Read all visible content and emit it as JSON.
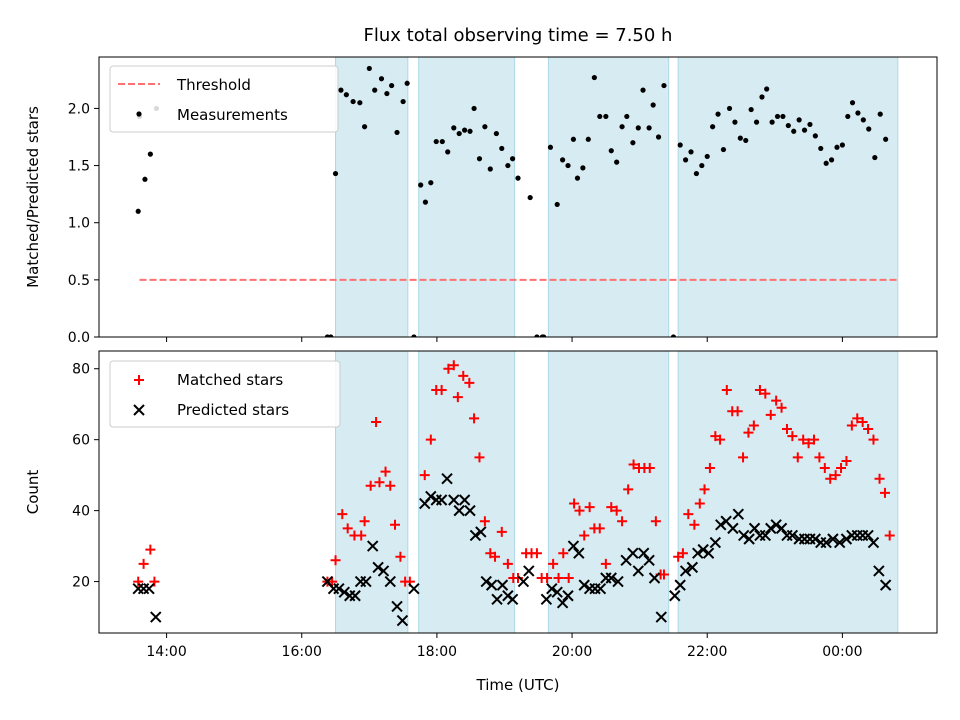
{
  "chart_data": {
    "title": "Flux total observing time = 7.50 h",
    "xlabel": "Time (UTC)",
    "x_unit": "hours since 00:00 UTC (values > 24 are next day)",
    "xlim": [
      13.0,
      25.4
    ],
    "xticks": [
      14,
      16,
      18,
      20,
      22,
      24
    ],
    "xtick_labels": [
      "14:00",
      "16:00",
      "18:00",
      "20:00",
      "22:00",
      "00:00"
    ],
    "shaded_intervals": [
      [
        16.5,
        17.57
      ],
      [
        17.73,
        19.15
      ],
      [
        19.65,
        21.43
      ],
      [
        21.57,
        24.82
      ]
    ],
    "colors": {
      "shade": "#add8e6",
      "threshold": "#ff7070",
      "measurement": "#000000",
      "matched": "#ff0000",
      "predicted": "#000000"
    },
    "top": {
      "type": "scatter",
      "ylabel": "Matched/Predicted stars",
      "ylim": [
        0.0,
        2.45
      ],
      "yticks": [
        0.0,
        0.5,
        1.0,
        1.5,
        2.0
      ],
      "ytick_labels": [
        "0.0",
        "0.5",
        "1.0",
        "1.5",
        "2.0"
      ],
      "legend": [
        "Threshold",
        "Measurements"
      ],
      "threshold": {
        "y": 0.5,
        "x": [
          13.6,
          24.82
        ]
      },
      "measurements": [
        [
          13.58,
          1.1
        ],
        [
          13.6,
          1.93
        ],
        [
          13.68,
          1.38
        ],
        [
          13.76,
          1.6
        ],
        [
          13.85,
          2.0
        ],
        [
          16.38,
          0.0
        ],
        [
          16.43,
          0.0
        ],
        [
          16.5,
          1.43
        ],
        [
          16.58,
          2.16
        ],
        [
          16.66,
          2.12
        ],
        [
          16.76,
          2.06
        ],
        [
          16.86,
          2.05
        ],
        [
          16.93,
          1.84
        ],
        [
          17.0,
          2.35
        ],
        [
          17.08,
          2.16
        ],
        [
          17.18,
          2.26
        ],
        [
          17.26,
          2.13
        ],
        [
          17.33,
          2.2
        ],
        [
          17.41,
          1.79
        ],
        [
          17.5,
          2.06
        ],
        [
          17.56,
          2.22
        ],
        [
          17.66,
          0.0
        ],
        [
          17.76,
          1.33
        ],
        [
          17.83,
          1.18
        ],
        [
          17.91,
          1.35
        ],
        [
          17.99,
          1.71
        ],
        [
          18.08,
          1.71
        ],
        [
          18.16,
          1.62
        ],
        [
          18.25,
          1.83
        ],
        [
          18.33,
          1.78
        ],
        [
          18.41,
          1.81
        ],
        [
          18.49,
          1.8
        ],
        [
          18.55,
          2.0
        ],
        [
          18.63,
          1.56
        ],
        [
          18.71,
          1.84
        ],
        [
          18.79,
          1.47
        ],
        [
          18.88,
          1.78
        ],
        [
          18.96,
          1.65
        ],
        [
          19.05,
          1.5
        ],
        [
          19.12,
          1.56
        ],
        [
          19.2,
          1.39
        ],
        [
          19.48,
          0.0
        ],
        [
          19.56,
          0.0
        ],
        [
          19.38,
          1.22
        ],
        [
          19.58,
          0.0
        ],
        [
          19.68,
          1.66
        ],
        [
          19.78,
          1.16
        ],
        [
          19.86,
          1.55
        ],
        [
          19.94,
          1.5
        ],
        [
          20.02,
          1.73
        ],
        [
          20.08,
          1.39
        ],
        [
          20.16,
          1.48
        ],
        [
          20.24,
          1.73
        ],
        [
          20.33,
          2.27
        ],
        [
          20.41,
          1.93
        ],
        [
          20.5,
          1.93
        ],
        [
          20.58,
          1.63
        ],
        [
          20.66,
          1.53
        ],
        [
          20.74,
          1.84
        ],
        [
          20.81,
          1.93
        ],
        [
          20.9,
          1.7
        ],
        [
          20.98,
          1.83
        ],
        [
          21.05,
          2.16
        ],
        [
          21.14,
          1.83
        ],
        [
          21.2,
          2.03
        ],
        [
          21.28,
          1.75
        ],
        [
          21.36,
          2.2
        ],
        [
          21.5,
          0.0
        ],
        [
          21.6,
          1.68
        ],
        [
          21.68,
          1.55
        ],
        [
          21.76,
          1.62
        ],
        [
          21.84,
          1.43
        ],
        [
          21.92,
          1.5
        ],
        [
          22.0,
          1.58
        ],
        [
          22.08,
          1.84
        ],
        [
          22.16,
          1.95
        ],
        [
          22.24,
          1.64
        ],
        [
          22.33,
          2.0
        ],
        [
          22.41,
          1.88
        ],
        [
          22.49,
          1.74
        ],
        [
          22.57,
          1.72
        ],
        [
          22.65,
          1.99
        ],
        [
          22.73,
          1.88
        ],
        [
          22.81,
          2.1
        ],
        [
          22.88,
          2.17
        ],
        [
          22.96,
          1.88
        ],
        [
          23.04,
          1.93
        ],
        [
          23.12,
          1.93
        ],
        [
          23.2,
          1.85
        ],
        [
          23.28,
          1.8
        ],
        [
          23.36,
          1.9
        ],
        [
          23.44,
          1.81
        ],
        [
          23.52,
          1.86
        ],
        [
          23.6,
          1.76
        ],
        [
          23.68,
          1.65
        ],
        [
          23.76,
          1.52
        ],
        [
          23.84,
          1.55
        ],
        [
          23.92,
          1.66
        ],
        [
          24.0,
          1.68
        ],
        [
          24.08,
          1.93
        ],
        [
          24.15,
          2.05
        ],
        [
          24.23,
          1.96
        ],
        [
          24.31,
          1.9
        ],
        [
          24.39,
          1.82
        ],
        [
          24.48,
          1.57
        ],
        [
          24.56,
          1.95
        ],
        [
          24.64,
          1.73
        ]
      ]
    },
    "bottom": {
      "type": "scatter",
      "ylabel": "Count",
      "ylim": [
        5.5,
        85
      ],
      "yticks": [
        20,
        40,
        60,
        80
      ],
      "ytick_labels": [
        "20",
        "40",
        "60",
        "80"
      ],
      "legend": [
        "Matched stars",
        "Predicted stars"
      ],
      "matched": [
        [
          13.58,
          20
        ],
        [
          13.66,
          25
        ],
        [
          13.76,
          29
        ],
        [
          13.82,
          20
        ],
        [
          16.38,
          20
        ],
        [
          16.45,
          20
        ],
        [
          16.5,
          26
        ],
        [
          16.6,
          39
        ],
        [
          16.68,
          35
        ],
        [
          16.78,
          33
        ],
        [
          16.88,
          33
        ],
        [
          16.93,
          37
        ],
        [
          17.02,
          47
        ],
        [
          17.1,
          65
        ],
        [
          17.15,
          48
        ],
        [
          17.24,
          51
        ],
        [
          17.31,
          47
        ],
        [
          17.38,
          36
        ],
        [
          17.46,
          27
        ],
        [
          17.53,
          20
        ],
        [
          17.6,
          20
        ],
        [
          17.82,
          50
        ],
        [
          17.91,
          60
        ],
        [
          17.99,
          74
        ],
        [
          18.07,
          74
        ],
        [
          18.17,
          80
        ],
        [
          18.25,
          81
        ],
        [
          18.31,
          72
        ],
        [
          18.39,
          78
        ],
        [
          18.48,
          76
        ],
        [
          18.55,
          66
        ],
        [
          18.63,
          55
        ],
        [
          18.71,
          37
        ],
        [
          18.79,
          28
        ],
        [
          18.86,
          27
        ],
        [
          18.96,
          34
        ],
        [
          19.05,
          25
        ],
        [
          19.13,
          21
        ],
        [
          19.2,
          21
        ],
        [
          19.32,
          28
        ],
        [
          19.4,
          28
        ],
        [
          19.48,
          28
        ],
        [
          19.55,
          21
        ],
        [
          19.63,
          21
        ],
        [
          19.72,
          25
        ],
        [
          19.8,
          21
        ],
        [
          19.87,
          28
        ],
        [
          19.95,
          21
        ],
        [
          20.03,
          42
        ],
        [
          20.11,
          40
        ],
        [
          20.18,
          33
        ],
        [
          20.26,
          41
        ],
        [
          20.33,
          35
        ],
        [
          20.41,
          35
        ],
        [
          20.5,
          25
        ],
        [
          20.58,
          41
        ],
        [
          20.66,
          40
        ],
        [
          20.74,
          37
        ],
        [
          20.83,
          46
        ],
        [
          20.91,
          53
        ],
        [
          20.99,
          52
        ],
        [
          21.07,
          52
        ],
        [
          21.15,
          52
        ],
        [
          21.24,
          37
        ],
        [
          21.31,
          22
        ],
        [
          21.36,
          22
        ],
        [
          21.57,
          27
        ],
        [
          21.64,
          28
        ],
        [
          21.72,
          39
        ],
        [
          21.81,
          36
        ],
        [
          21.89,
          42
        ],
        [
          21.96,
          46
        ],
        [
          22.04,
          52
        ],
        [
          22.12,
          61
        ],
        [
          22.19,
          60
        ],
        [
          22.29,
          74
        ],
        [
          22.37,
          68
        ],
        [
          22.45,
          68
        ],
        [
          22.53,
          55
        ],
        [
          22.61,
          62
        ],
        [
          22.69,
          64
        ],
        [
          22.78,
          74
        ],
        [
          22.86,
          73
        ],
        [
          22.94,
          67
        ],
        [
          23.02,
          71
        ],
        [
          23.1,
          69
        ],
        [
          23.18,
          63
        ],
        [
          23.26,
          61
        ],
        [
          23.34,
          55
        ],
        [
          23.42,
          60
        ],
        [
          23.5,
          59
        ],
        [
          23.58,
          60
        ],
        [
          23.66,
          55
        ],
        [
          23.74,
          52
        ],
        [
          23.82,
          49
        ],
        [
          23.9,
          50
        ],
        [
          23.98,
          52
        ],
        [
          24.06,
          54
        ],
        [
          24.14,
          64
        ],
        [
          24.22,
          66
        ],
        [
          24.3,
          65
        ],
        [
          24.38,
          63
        ],
        [
          24.46,
          60
        ],
        [
          24.55,
          49
        ],
        [
          24.63,
          45
        ],
        [
          24.7,
          33
        ]
      ],
      "predicted": [
        [
          13.58,
          18
        ],
        [
          13.66,
          18
        ],
        [
          13.74,
          18
        ],
        [
          13.84,
          10
        ],
        [
          16.38,
          20
        ],
        [
          16.47,
          18
        ],
        [
          16.55,
          18
        ],
        [
          16.63,
          17
        ],
        [
          16.71,
          16
        ],
        [
          16.79,
          16
        ],
        [
          16.87,
          20
        ],
        [
          16.95,
          20
        ],
        [
          17.05,
          30
        ],
        [
          17.13,
          24
        ],
        [
          17.21,
          23
        ],
        [
          17.31,
          20
        ],
        [
          17.41,
          13
        ],
        [
          17.49,
          9
        ],
        [
          17.66,
          18
        ],
        [
          17.82,
          42
        ],
        [
          17.91,
          44
        ],
        [
          17.99,
          43
        ],
        [
          18.07,
          43
        ],
        [
          18.15,
          49
        ],
        [
          18.25,
          43
        ],
        [
          18.33,
          40
        ],
        [
          18.41,
          43
        ],
        [
          18.49,
          40
        ],
        [
          18.57,
          33
        ],
        [
          18.65,
          34
        ],
        [
          18.73,
          20
        ],
        [
          18.81,
          19
        ],
        [
          18.89,
          15
        ],
        [
          18.97,
          19
        ],
        [
          19.05,
          16
        ],
        [
          19.12,
          15
        ],
        [
          19.28,
          20
        ],
        [
          19.36,
          23
        ],
        [
          19.62,
          15
        ],
        [
          19.7,
          18
        ],
        [
          19.78,
          17
        ],
        [
          19.86,
          14
        ],
        [
          19.94,
          16
        ],
        [
          20.02,
          30
        ],
        [
          20.1,
          28
        ],
        [
          20.18,
          19
        ],
        [
          20.26,
          18
        ],
        [
          20.34,
          18
        ],
        [
          20.42,
          18
        ],
        [
          20.5,
          21
        ],
        [
          20.58,
          21
        ],
        [
          20.68,
          20
        ],
        [
          20.8,
          26
        ],
        [
          20.9,
          28
        ],
        [
          20.98,
          23
        ],
        [
          21.06,
          28
        ],
        [
          21.14,
          26
        ],
        [
          21.22,
          21
        ],
        [
          21.32,
          10
        ],
        [
          21.52,
          16
        ],
        [
          21.6,
          19
        ],
        [
          21.68,
          23
        ],
        [
          21.78,
          24
        ],
        [
          21.86,
          28
        ],
        [
          21.94,
          29
        ],
        [
          22.02,
          28
        ],
        [
          22.12,
          31
        ],
        [
          22.2,
          36
        ],
        [
          22.28,
          37
        ],
        [
          22.38,
          35
        ],
        [
          22.46,
          39
        ],
        [
          22.54,
          33
        ],
        [
          22.62,
          32
        ],
        [
          22.7,
          35
        ],
        [
          22.78,
          33
        ],
        [
          22.86,
          33
        ],
        [
          22.94,
          35
        ],
        [
          23.02,
          36
        ],
        [
          23.1,
          35
        ],
        [
          23.18,
          33
        ],
        [
          23.26,
          33
        ],
        [
          23.36,
          32
        ],
        [
          23.44,
          32
        ],
        [
          23.52,
          32
        ],
        [
          23.6,
          32
        ],
        [
          23.68,
          31
        ],
        [
          23.76,
          31
        ],
        [
          23.86,
          32
        ],
        [
          23.96,
          31
        ],
        [
          24.06,
          32
        ],
        [
          24.14,
          33
        ],
        [
          24.22,
          33
        ],
        [
          24.3,
          33
        ],
        [
          24.38,
          33
        ],
        [
          24.46,
          31
        ],
        [
          24.54,
          23
        ],
        [
          24.64,
          19
        ]
      ]
    }
  }
}
